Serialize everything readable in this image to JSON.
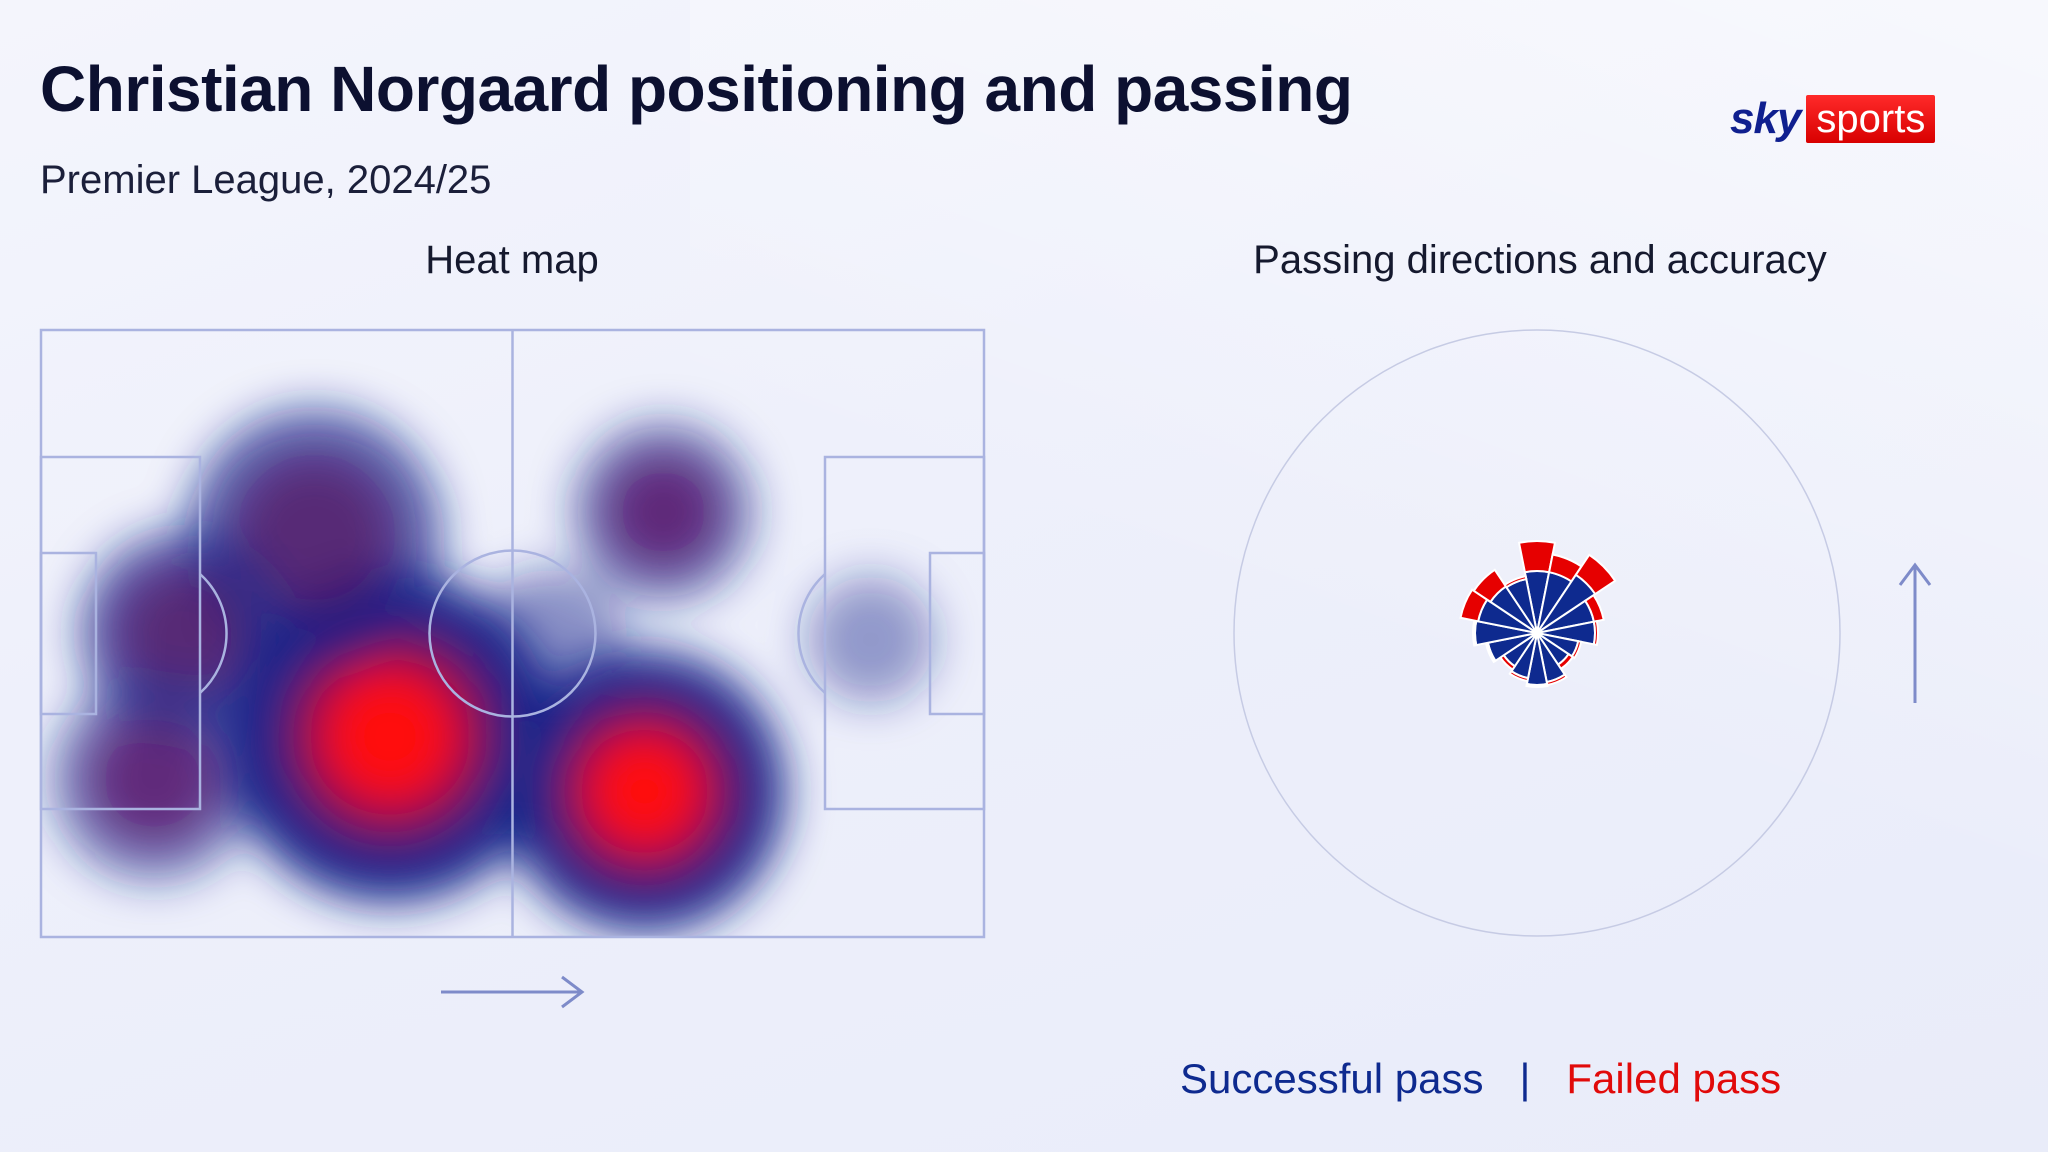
{
  "header": {
    "title": "Christian Norgaard positioning and passing",
    "subtitle": "Premier League, 2024/25"
  },
  "logo": {
    "sky": "sky",
    "sports": "sports"
  },
  "panels": {
    "heatmap_title": "Heat map",
    "radar_title": "Passing directions and accuracy"
  },
  "legend": {
    "success_label": "Successful pass",
    "separator": "|",
    "fail_label": "Failed pass"
  },
  "colors": {
    "success": "#0e2a8f",
    "fail": "#e60000",
    "pitch_lines": "#aab3e0"
  },
  "icons": {
    "attack_direction_heatmap": "arrow-right-icon",
    "attack_direction_radar": "arrow-up-icon"
  },
  "chart_data": [
    {
      "type": "heatmap",
      "title": "Heat map",
      "x_unit": "percent of pitch length (own goal to opponent goal)",
      "y_unit": "percent of pitch width",
      "direction_of_play": "left-to-right",
      "hotspots": [
        {
          "x": 37,
          "y": 67,
          "intensity": 1.0,
          "spread": 13
        },
        {
          "x": 64,
          "y": 76,
          "intensity": 1.0,
          "spread": 11
        },
        {
          "x": 29,
          "y": 34,
          "intensity": 0.55,
          "spread": 10
        },
        {
          "x": 15,
          "y": 50,
          "intensity": 0.55,
          "spread": 8
        },
        {
          "x": 66,
          "y": 30,
          "intensity": 0.4,
          "spread": 7
        },
        {
          "x": 12,
          "y": 74,
          "intensity": 0.35,
          "spread": 8
        },
        {
          "x": 54,
          "y": 52,
          "intensity": 0.18,
          "spread": 6
        },
        {
          "x": 88,
          "y": 51,
          "intensity": 0.12,
          "spread": 5
        }
      ]
    },
    {
      "type": "polar-bar",
      "title": "Passing directions and accuracy",
      "direction_of_play": "up",
      "sectors_deg_clockwise_from_up": [
        0,
        22.5,
        45,
        67.5,
        90,
        112.5,
        135,
        157.5,
        180,
        202.5,
        225,
        247.5,
        270,
        292.5,
        315,
        337.5
      ],
      "successful": [
        62,
        62,
        70,
        58,
        58,
        42,
        38,
        50,
        52,
        46,
        40,
        50,
        62,
        60,
        56,
        55
      ],
      "failed": [
        30,
        18,
        24,
        10,
        3,
        3,
        5,
        3,
        2,
        3,
        4,
        2,
        2,
        18,
        20,
        3
      ]
    }
  ]
}
